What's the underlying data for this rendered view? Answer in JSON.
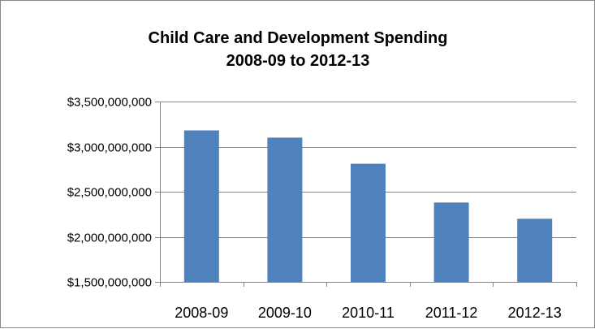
{
  "chart_data": {
    "type": "bar",
    "title": "Child Care and Development Spending",
    "subtitle": "2008-09 to 2012-13",
    "categories": [
      "2008-09",
      "2009-10",
      "2010-11",
      "2011-12",
      "2012-13"
    ],
    "values": [
      3180000000,
      3100000000,
      2810000000,
      2380000000,
      2200000000
    ],
    "ylim": [
      1500000000,
      3500000000
    ],
    "yticks": [
      1500000000,
      2000000000,
      2500000000,
      3000000000,
      3500000000
    ],
    "ytick_labels": [
      "$1,500,000,000",
      "$2,000,000,000",
      "$2,500,000,000",
      "$3,000,000,000",
      "$3,500,000,000"
    ],
    "grid": true,
    "legend": "none",
    "colors": {
      "bar": "#4f81bd",
      "grid": "#868686",
      "axis": "#868686"
    }
  }
}
